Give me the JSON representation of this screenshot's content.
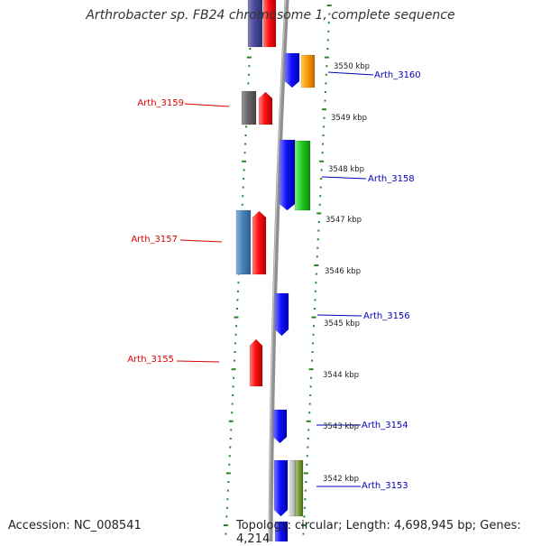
{
  "title": "Arthrobacter sp. FB24 chromosome 1, complete sequence",
  "footer": {
    "accession": "Accession: NC_008541",
    "topology": "Topology: circular; Length: 4,698,945 bp; Genes: 4,214"
  },
  "colors": {
    "backbone": "#8f8f8f",
    "tick": "#228822",
    "reverse_label": "#dd0000",
    "forward_label": "#0000bb"
  },
  "kbp_labels": [
    "3550 kbp",
    "3549 kbp",
    "3548 kbp",
    "3547 kbp",
    "3546 kbp",
    "3545 kbp",
    "3544 kbp",
    "3543 kbp",
    "3542 kbp"
  ],
  "gene_labels_left": [
    "Arth_3159",
    "Arth_3157",
    "Arth_3155"
  ],
  "gene_labels_right": [
    "Arth_3160",
    "Arth_3158",
    "Arth_3156",
    "Arth_3154",
    "Arth_3153"
  ]
}
